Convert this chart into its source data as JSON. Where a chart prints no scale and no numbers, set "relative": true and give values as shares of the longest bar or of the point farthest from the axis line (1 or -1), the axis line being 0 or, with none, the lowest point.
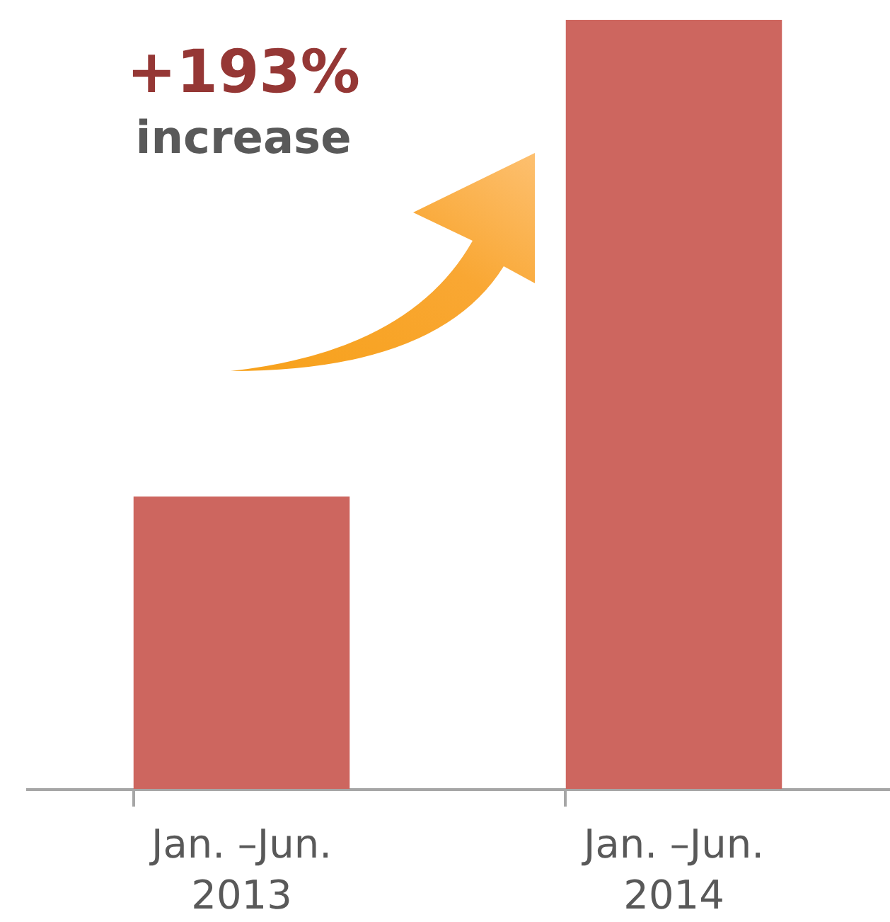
{
  "chart_data": {
    "type": "bar",
    "categories": [
      "Jan. –Jun. 2013",
      "Jan. –Jun. 2014"
    ],
    "values": [
      0.38,
      1
    ],
    "color": "#cd665f",
    "relative": true,
    "annotations": [
      "+193%",
      "increase"
    ]
  }
}
